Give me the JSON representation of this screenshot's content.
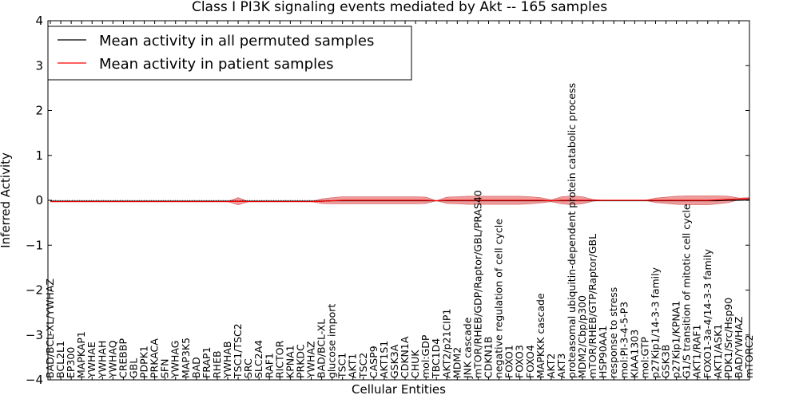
{
  "chart_data": {
    "type": "line",
    "title": "Class I PI3K signaling events mediated by Akt -- 165 samples",
    "xlabel": "Cellular Entities",
    "ylabel": "Inferred Activity",
    "ylim": [
      -4,
      4
    ],
    "yticks": [
      "−4",
      "−3",
      "−2",
      "−1",
      "0",
      "1",
      "2",
      "3",
      "4"
    ],
    "legend": {
      "position": "top-left",
      "entries": [
        {
          "label": "Mean activity in all permuted samples",
          "color": "#000000"
        },
        {
          "label": "Mean activity in patient samples",
          "color": "#ff0000"
        }
      ]
    },
    "categories": [
      "BAD/BCL-XL/YWHAZ",
      "BCL2L1",
      "EP300",
      "MAPKAP1",
      "YWHAE",
      "YWHAH",
      "YWHAQ",
      "CREBBP",
      "GBL",
      "PDPK1",
      "PRKACA",
      "SFN",
      "YWHAG",
      "MAP3K5",
      "BAD",
      "FRAP1",
      "RHEB",
      "YWHAB",
      "TSC1/TSC2",
      "SRC",
      "SLC2A4",
      "RAF1",
      "RICTOR",
      "KPNA1",
      "PRKDC",
      "YWHAZ",
      "BAD/BCL-XL",
      "glucose import",
      "TSC1",
      "AKT1",
      "TSC2",
      "CASP9",
      "AKT1S1",
      "GSK3A",
      "CDKN1A",
      "CHUK",
      "mol:GDP",
      "TBC1D4",
      "AKT2/p21CIP1",
      "MDM2",
      "JNK cascade",
      "mTOR/RHEB/GDP/Raptor/GBL/PRAS40",
      "CDKN1B",
      "negative regulation of cell cycle",
      "FOXO1",
      "FOXO3",
      "FOXO4",
      "MAPKKK cascade",
      "AKT2",
      "AKT3",
      "proteasomal ubiquitin-dependent protein catabolic process",
      "MDM2/Cbp/p300",
      "mTOR/RHEB/GTP/Raptor/GBL",
      "HSP90AA1",
      "response to stress",
      "mol:PI-3-4-5-P3",
      "KIAA1303",
      "mol:GTP",
      "p27Kip1/14-3-3 family",
      "GSK3B",
      "p27Kip1/KPNA1",
      "G1/S transition of mitotic cell cycle",
      "AKT1/RAF1",
      "FOXO1-3a-4/14-3-3 family",
      "AKT1/ASK1",
      "PDK1/Src/Hsp90",
      "BAD/YWHAZ",
      "mTORC2"
    ],
    "series": [
      {
        "name": "Mean activity in all permuted samples",
        "color": "#000000",
        "values": [
          -0.02,
          -0.02,
          -0.02,
          -0.02,
          -0.02,
          -0.02,
          -0.02,
          -0.02,
          -0.02,
          -0.02,
          -0.02,
          -0.02,
          -0.02,
          -0.02,
          -0.02,
          -0.02,
          -0.02,
          -0.02,
          -0.02,
          -0.02,
          -0.02,
          -0.02,
          -0.02,
          -0.02,
          -0.02,
          -0.02,
          -0.02,
          -0.01,
          -0.01,
          -0.01,
          -0.01,
          -0.01,
          -0.01,
          -0.01,
          -0.01,
          -0.01,
          -0.01,
          -0.01,
          -0.01,
          -0.01,
          -0.01,
          -0.01,
          -0.01,
          -0.01,
          -0.01,
          -0.01,
          -0.01,
          -0.01,
          -0.01,
          -0.01,
          -0.01,
          -0.01,
          -0.01,
          -0.01,
          -0.01,
          -0.01,
          -0.01,
          -0.01,
          -0.01,
          -0.01,
          -0.01,
          -0.01,
          -0.01,
          -0.01,
          -0.01,
          0.0,
          0.0,
          0.01
        ]
      },
      {
        "name": "Mean activity in patient samples",
        "color": "#ff0000",
        "values": [
          -0.03,
          -0.03,
          -0.03,
          -0.03,
          -0.03,
          -0.03,
          -0.03,
          -0.03,
          -0.03,
          -0.03,
          -0.03,
          -0.03,
          -0.03,
          -0.03,
          -0.03,
          -0.03,
          -0.03,
          -0.03,
          -0.02,
          -0.03,
          -0.03,
          -0.03,
          -0.03,
          -0.03,
          -0.03,
          -0.03,
          -0.02,
          -0.01,
          0.0,
          0.0,
          0.0,
          0.0,
          0.0,
          0.0,
          0.0,
          0.0,
          0.0,
          -0.01,
          0.0,
          0.0,
          0.0,
          0.0,
          0.0,
          0.0,
          0.0,
          0.0,
          0.0,
          0.0,
          -0.01,
          0.0,
          0.0,
          0.0,
          0.0,
          0.0,
          0.0,
          0.0,
          0.0,
          0.0,
          0.0,
          0.0,
          0.0,
          0.0,
          0.0,
          0.0,
          0.01,
          0.02,
          0.03,
          0.04
        ]
      }
    ],
    "band_halfwidth": [
      0,
      0,
      0,
      0,
      0,
      0,
      0,
      0,
      0,
      0,
      0,
      0,
      0,
      0,
      0,
      0,
      0,
      0.0,
      0.08,
      0,
      0,
      0,
      0,
      0,
      0,
      0,
      0.05,
      0.07,
      0.08,
      0.08,
      0.08,
      0.08,
      0.08,
      0.08,
      0.08,
      0.08,
      0.07,
      0,
      0.07,
      0.08,
      0.09,
      0.09,
      0.09,
      0.09,
      0.09,
      0.09,
      0.08,
      0.06,
      0.02,
      0.08,
      0.1,
      0.08,
      0.02,
      0,
      0,
      0,
      0,
      0,
      0.05,
      0.07,
      0.09,
      0.1,
      0.1,
      0.1,
      0.09,
      0.07,
      0.02,
      0.02
    ]
  }
}
